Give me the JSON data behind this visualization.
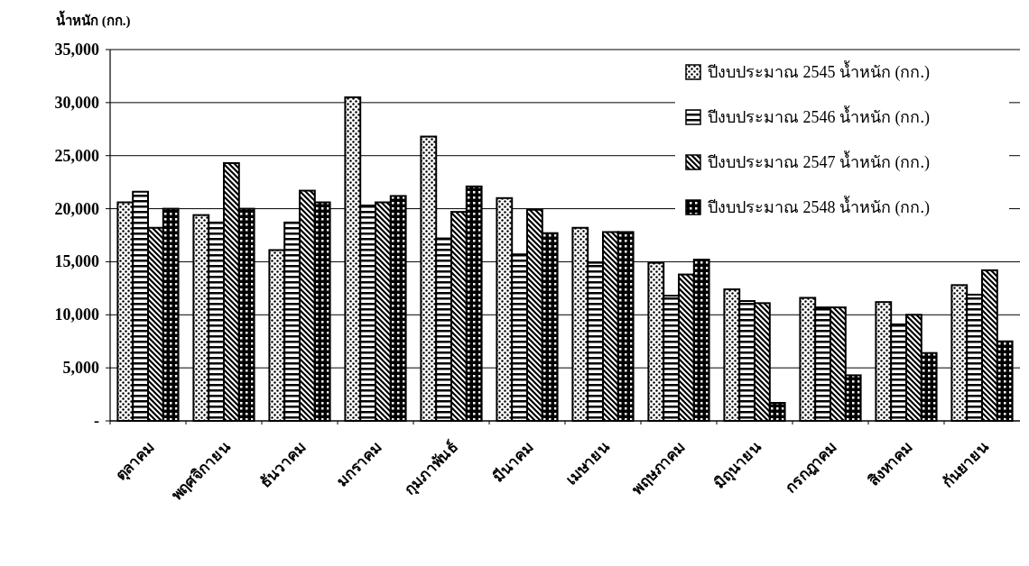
{
  "chart_data": {
    "type": "bar",
    "ylabel": "น้ำหนัก (กก.)",
    "categories": [
      "ตุลาคม",
      "พฤศจิกายน",
      "ธันวาคม",
      "มกราคม",
      "กุมภาพันธ์",
      "มีนาคม",
      "เมษายน",
      "พฤษภาคม",
      "มิถุนายน",
      "กรกฎาคม",
      "สิงหาคม",
      "กันยายน"
    ],
    "series": [
      {
        "name": "ปีงบประมาณ 2545 น้ำหนัก (กก.)",
        "color": "#000000",
        "values": [
          20600,
          19400,
          16100,
          30500,
          26800,
          21000,
          18200,
          14900,
          12400,
          11600,
          11200,
          12800
        ]
      },
      {
        "name": "ปีงบประมาณ 2546 น้ำหนัก (กก.)",
        "color": "#000000",
        "values": [
          21600,
          18700,
          18700,
          20300,
          17200,
          15700,
          14900,
          11800,
          11300,
          10700,
          9100,
          11900
        ]
      },
      {
        "name": "ปีงบประมาณ 2547 น้ำหนัก (กก.)",
        "color": "#000000",
        "values": [
          18200,
          24300,
          21700,
          20600,
          19700,
          19900,
          17800,
          13800,
          11100,
          10700,
          10000,
          14200
        ]
      },
      {
        "name": "ปีงบประมาณ 2548 น้ำหนัก (กก.)",
        "color": "#000000",
        "values": [
          20000,
          20000,
          20600,
          21200,
          22100,
          17700,
          17800,
          15200,
          1700,
          4300,
          6400,
          7500
        ]
      }
    ],
    "ylim": [
      0,
      35000
    ],
    "yticks": [
      {
        "value": 0,
        "label": "-"
      },
      {
        "value": 5000,
        "label": "5,000"
      },
      {
        "value": 10000,
        "label": "10,000"
      },
      {
        "value": 15000,
        "label": "15,000"
      },
      {
        "value": 20000,
        "label": "20,000"
      },
      {
        "value": 25000,
        "label": "25,000"
      },
      {
        "value": 30000,
        "label": "30,000"
      },
      {
        "value": 35000,
        "label": "35,000"
      }
    ],
    "grid": "y",
    "legend": "top right"
  }
}
